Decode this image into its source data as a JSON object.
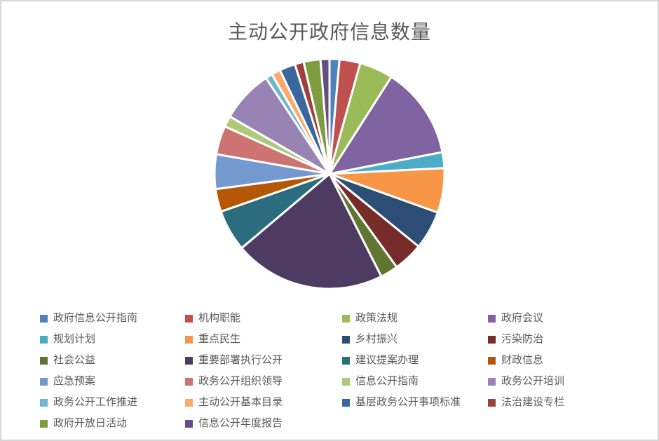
{
  "page": {
    "background": "#ffffff",
    "frame_border_color": "#d6d6d6"
  },
  "chart_data": {
    "type": "pie",
    "title": "主动公开政府信息数量",
    "title_color": "#595959",
    "legend_position": "bottom",
    "legend_text_color": "#595959",
    "start_angle_deg": 0,
    "direction": "clockwise",
    "slice_border_color": "#ffffff",
    "categories": [
      "政府信息公开指南",
      "机构职能",
      "政策法规",
      "政府会议",
      "规划计划",
      "重点民生",
      "乡村振兴",
      "污染防治",
      "社会公益",
      "重要部署执行公开",
      "建议提案办理",
      "财政信息",
      "应急预案",
      "政务公开组织领导",
      "信息公开指南",
      "政务公开培训",
      "政务公开工作推进",
      "主动公开基本目录",
      "基层政务公开事项标准",
      "法治建设专栏",
      "政府开放日活动",
      "信息公开年度报告"
    ],
    "values": [
      10,
      21,
      34,
      93,
      16,
      45,
      39,
      30,
      18,
      153,
      42,
      23,
      35,
      29,
      11,
      53,
      7,
      9,
      16,
      9,
      17,
      9
    ],
    "colors": [
      "#4F81BD",
      "#C0504D",
      "#9BBB59",
      "#8064A2",
      "#4BACC6",
      "#F79646",
      "#2C4D75",
      "#772C2A",
      "#5F7530",
      "#4D3B62",
      "#2B6D7F",
      "#B65708",
      "#7499CE",
      "#CD7371",
      "#AFC97A",
      "#9983B5",
      "#6FB7CF",
      "#F9AB6B",
      "#3A679C",
      "#9E413E",
      "#7E9D40",
      "#664E82"
    ]
  }
}
